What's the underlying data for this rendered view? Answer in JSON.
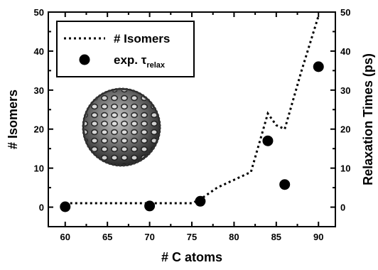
{
  "chart_data": {
    "type": "line",
    "xlabel": "# C atoms",
    "ylabel_left": "# Isomers",
    "ylabel_right": "Relaxation Times (ps)",
    "xlim": [
      58,
      92
    ],
    "ylim_left": [
      -5,
      50
    ],
    "ylim_right": [
      -5,
      50
    ],
    "x_ticks": [
      60,
      65,
      70,
      75,
      80,
      85,
      90
    ],
    "y_ticks": [
      0,
      10,
      20,
      30,
      40,
      50
    ],
    "grid": false,
    "legend_position": "top-left",
    "series": [
      {
        "name": "# Isomers",
        "kind": "line",
        "style": "dotted",
        "axis": "left",
        "x": [
          60,
          70,
          75,
          76,
          78,
          82,
          84,
          85,
          86,
          88,
          90
        ],
        "y": [
          1,
          1,
          1,
          2,
          5,
          9,
          24,
          21,
          20,
          35,
          49
        ]
      },
      {
        "name": "exp. τ",
        "name_subscript": "relax",
        "kind": "scatter",
        "axis": "right",
        "x": [
          60,
          70,
          76,
          84,
          86,
          90
        ],
        "y": [
          0.1,
          0.3,
          1.5,
          17,
          5.8,
          36
        ]
      }
    ]
  }
}
